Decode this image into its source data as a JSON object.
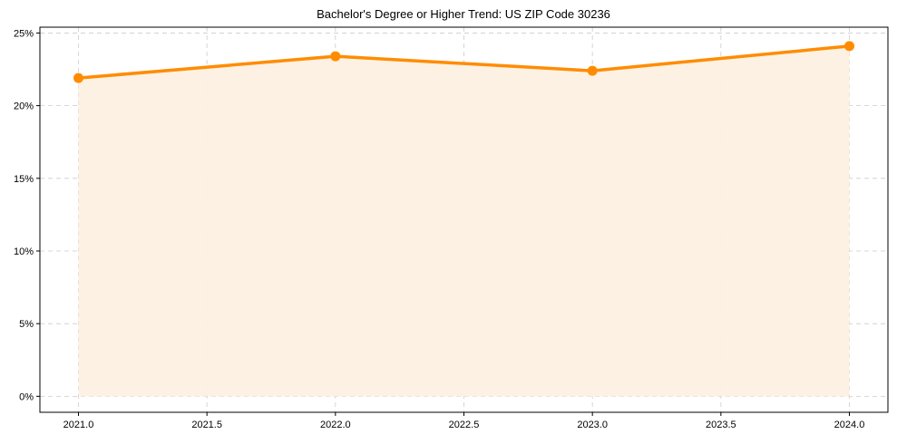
{
  "chart_data": {
    "type": "line",
    "title": "Bachelor's Degree or Higher Trend: US ZIP Code 30236",
    "xlabel": "",
    "ylabel": "",
    "x": [
      2021,
      2022,
      2023,
      2024
    ],
    "series": [
      {
        "name": "Bachelor's Degree or Higher",
        "values": [
          21.9,
          23.4,
          22.4,
          24.1
        ],
        "color": "#ff8c00"
      }
    ],
    "xlim": [
      2020.85,
      2024.15
    ],
    "ylim": [
      -1.1,
      25.4
    ],
    "xticks": [
      2021.0,
      2021.5,
      2022.0,
      2022.5,
      2023.0,
      2023.5,
      2024.0
    ],
    "xtick_labels": [
      "2021.0",
      "2021.5",
      "2022.0",
      "2022.5",
      "2023.0",
      "2023.5",
      "2024.0"
    ],
    "yticks": [
      0,
      5,
      10,
      15,
      20,
      25
    ],
    "ytick_labels": [
      "0%",
      "5%",
      "10%",
      "15%",
      "20%",
      "25%"
    ],
    "grid": true,
    "fill_color": "#fdf0e3",
    "line_color": "#ff8c00"
  }
}
